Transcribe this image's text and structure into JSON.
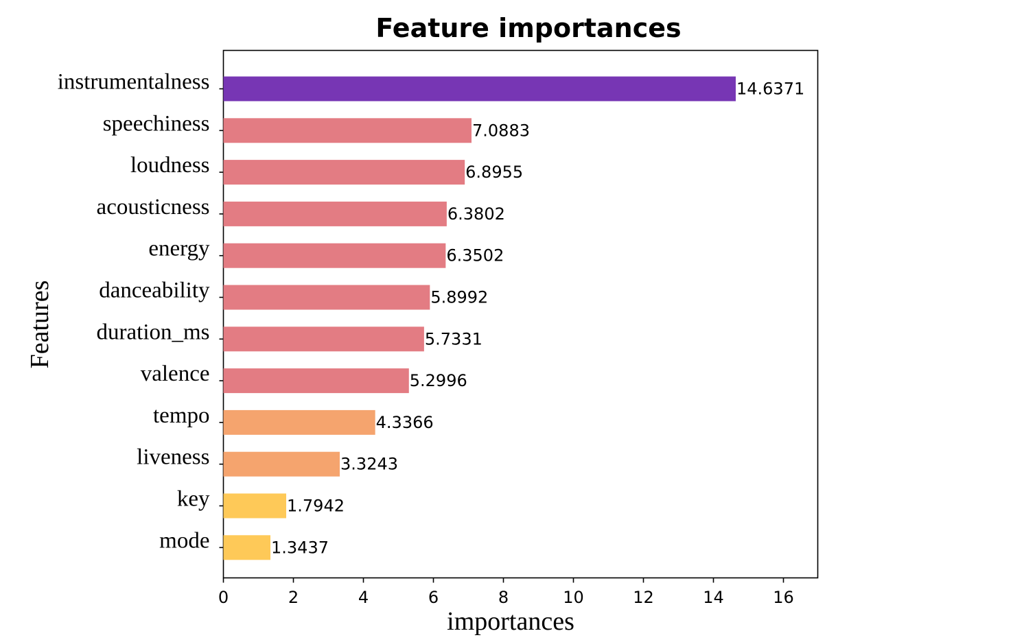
{
  "chart_data": {
    "type": "bar",
    "orientation": "horizontal",
    "title": "Feature importances",
    "xlabel": "importances",
    "ylabel": "Features",
    "xlim": [
      0,
      17
    ],
    "xticks": [
      0,
      2,
      4,
      6,
      8,
      10,
      12,
      14,
      16
    ],
    "grid": false,
    "categories": [
      "instrumentalness",
      "speechiness",
      "loudness",
      "acousticness",
      "energy",
      "danceability",
      "duration_ms",
      "valence",
      "tempo",
      "liveness",
      "key",
      "mode"
    ],
    "values": [
      14.6371,
      7.0883,
      6.8955,
      6.3802,
      6.3502,
      5.8992,
      5.7331,
      5.2996,
      4.3366,
      3.3243,
      1.7942,
      1.3437
    ],
    "value_labels": [
      "14.6371",
      "7.0883",
      "6.8955",
      "6.3802",
      "6.3502",
      "5.8992",
      "5.7331",
      "5.2996",
      "4.3366",
      "3.3243",
      "1.7942",
      "1.3437"
    ],
    "colors": [
      "#7736b4",
      "#e37c83",
      "#e37c83",
      "#e37c83",
      "#e37c83",
      "#e37c83",
      "#e37c83",
      "#e37c83",
      "#f5a46e",
      "#f5a46e",
      "#fec958",
      "#fec958"
    ]
  }
}
